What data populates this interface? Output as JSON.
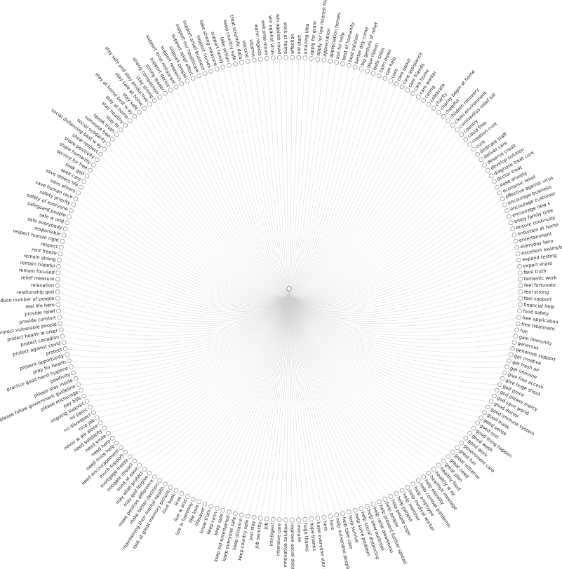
{
  "diagram": {
    "type": "radial-tree",
    "root_label": "",
    "colors": {
      "background": "#ffffff",
      "link": "#cfcfcf",
      "node_stroke": "#888888",
      "node_fill": "#ffffff",
      "label": "#222222"
    },
    "leaves": [
      "affection",
      "aid start",
      "amazing idea",
      "apply for grant",
      "apply for low interest loan",
      "appreciation",
      "appreciation heroes",
      "ask for help",
      "best of humanity",
      "best solution",
      "better day come",
      "big gesture of relief",
      "blue ribbon",
      "both sides",
      "calm down",
      "can help",
      "care",
      "care about",
      "care assistance",
      "care friends",
      "care home",
      "care worker",
      "caring",
      "celebrate",
      "charity",
      "charity begin at home",
      "cheerful",
      "children recovery",
      "clean environment",
      "coronavirus relief bill",
      "country",
      "covid free",
      "creation cure",
      "cure",
      "dedicate staff",
      "deliver care",
      "deserve credit",
      "develop solution",
      "diagnose treat cure",
      "doctor treat",
      "ease anxiety",
      "economic relief",
      "effective against virus",
      "encourage business",
      "encourage customer",
      "encourage new s",
      "enjoy family time",
      "ensure continuity",
      "entertain at home",
      "entertainment",
      "everyday hero",
      "excellent example",
      "expand testing",
      "expert share",
      "face truth",
      "fantastic work",
      "feel fortunate",
      "feel strong",
      "feel support",
      "financial help",
      "food safety",
      "free application",
      "free treatment",
      "fun",
      "gain immunity",
      "generous",
      "generous support",
      "get creative",
      "get fresh air",
      "get immune",
      "give free access",
      "give huge shout",
      "god grace",
      "god please mercy",
      "god save world",
      "good doctor",
      "good immune system",
      "good mask",
      "good sense",
      "good test",
      "good thing happen",
      "good wash",
      "good work",
      "government care",
      "great fun",
      "great initiative",
      "great need",
      "great plan",
      "healthy food",
      "healthy w ay",
      "heartfelt message",
      "help equality",
      "help combat pandemic",
      "help employee",
      "help medical worker",
      "help member",
      "help patient",
      "help people cope",
      "help people",
      "help prevent further spread",
      "help raise awareness",
      "help slow outbreak",
      "help social distancing",
      "help solve problem",
      "help survive",
      "help take care",
      "help vulnerable people",
      "here",
      "hero",
      "hope everyone stay safe",
      "hope thanks",
      "huge thanks",
      "immune",
      "improve social distancing",
      "innovative solution",
      "intensive care",
      "intelligent",
      "job",
      "job security",
      "just stay",
      "keep country safe",
      "keep distance",
      "keep everyone safe",
      "keep kid entertained",
      "keep safe",
      "keep calm",
      "know truth",
      "lifesaver",
      "like love",
      "live in harmony",
      "live w orld",
      "love",
      "love book",
      "look at great memory picture",
      "maintaining their mental health",
      "make better decision",
      "make positive difference",
      "may god forgive",
      "may allah protect",
      "mind at ease",
      "mitigate impact",
      "mortgage freeze",
      "much support",
      "need encouragement",
      "need more help",
      "need hero",
      "need smile",
      "need solidarity",
      "never w alk alone",
      "nice job",
      "no disrespect",
      "no panic",
      "ongoing support",
      "pay bills",
      "please encourage",
      "please follow government guideline",
      "please stay inside",
      "positivity",
      "practice good hand hygiene",
      "pray for health",
      "present opportunity",
      "protect",
      "protect against covid",
      "protect canadian",
      "protect health w orker",
      "protect vulnerable people",
      "provide comfort",
      "provide relief",
      "real life hero",
      "reduce number of people",
      "relationship god",
      "relaxation",
      "relief measure",
      "remain focused",
      "remain hopeful",
      "remain strong",
      "rent freeze",
      "respect",
      "respect human right",
      "responsible",
      "safe everybody",
      "safe w orld",
      "safeguard people",
      "safety of everyone",
      "safety priority",
      "save human race",
      "save others",
      "save others life",
      "seek care",
      "seek god",
      "service for free",
      "share humanity",
      "share positivity",
      "show respect",
      "social distancing best w ay",
      "social solidarity",
      "someone free",
      "speak truth",
      "stay fit",
      "stay healthy",
      "stay at home",
      "stay at home best w ay",
      "stay safe",
      "stay safe at home",
      "stay safe and stay productive",
      "stay strong",
      "strong compassion",
      "strong leader",
      "support doctor",
      "support local restaurant",
      "support research",
      "support people",
      "support relief effort",
      "support our healthcare",
      "support small business",
      "support nurses",
      "take strong measure",
      "support family",
      "take action",
      "keep country safe",
      "treat scientific data",
      "vaccine",
      "vitamin",
      "warm regards",
      "welcome move",
      "win against virus",
      "win against covid",
      "work at home"
    ]
  }
}
